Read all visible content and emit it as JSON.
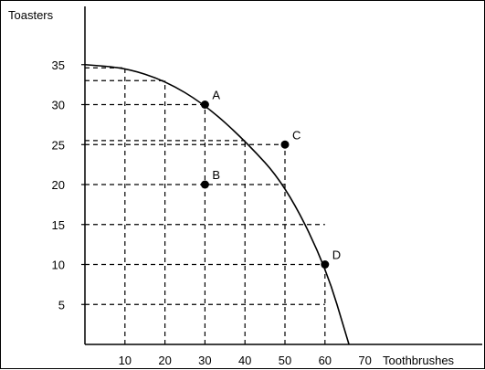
{
  "chart_data": {
    "type": "line",
    "title": "",
    "xlabel": "Toothbrushes",
    "ylabel": "Toasters",
    "xlim": [
      0,
      70
    ],
    "ylim": [
      0,
      38
    ],
    "x_ticks": [
      10,
      20,
      30,
      40,
      50,
      60,
      70
    ],
    "y_ticks": [
      5,
      10,
      15,
      20,
      25,
      30,
      35
    ],
    "x_tick_labels": [
      "10",
      "20",
      "30",
      "40",
      "50",
      "60",
      "70"
    ],
    "y_tick_labels": [
      "5",
      "10",
      "15",
      "20",
      "25",
      "30",
      "35"
    ],
    "grid": "dashed",
    "frontier": {
      "x": [
        0,
        10,
        20,
        30,
        40,
        50,
        60,
        66
      ],
      "y": [
        35,
        34.6,
        33,
        30,
        25.5,
        20,
        10,
        0
      ]
    },
    "points": [
      {
        "label": "A",
        "x": 30,
        "y": 30
      },
      {
        "label": "B",
        "x": 30,
        "y": 20
      },
      {
        "label": "C",
        "x": 50,
        "y": 25
      },
      {
        "label": "D",
        "x": 60,
        "y": 10
      }
    ],
    "guides": [
      {
        "x": 10,
        "y": 34.6
      },
      {
        "x": 20,
        "y": 33
      },
      {
        "x": 30,
        "y": 30
      },
      {
        "x": 40,
        "y": 25.5
      },
      {
        "x": 50,
        "y": 25
      },
      {
        "x": 60,
        "y": 10
      }
    ]
  }
}
